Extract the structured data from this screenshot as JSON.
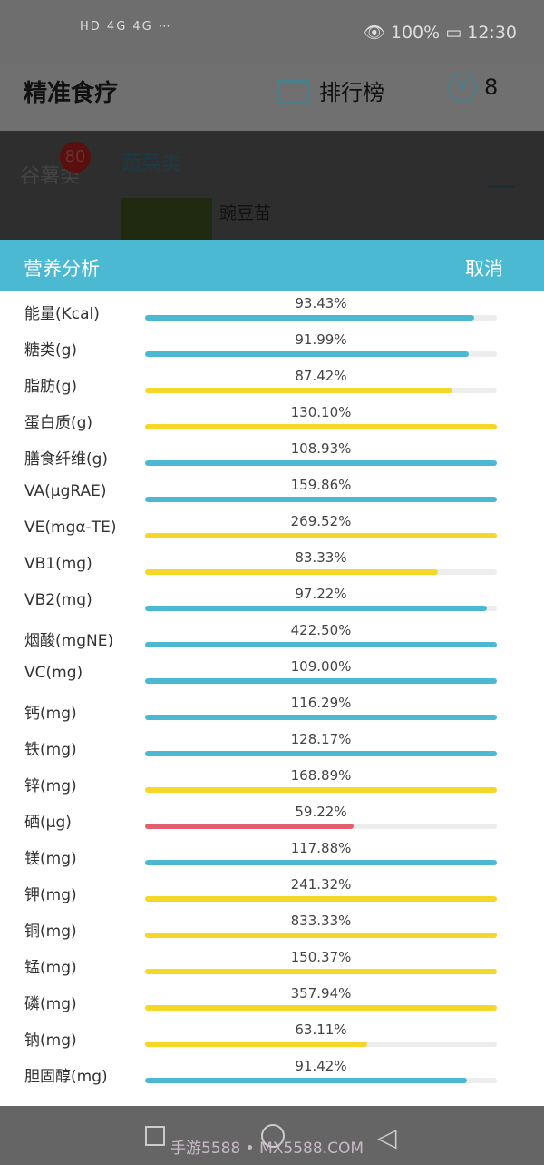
{
  "status_bar": {
    "icons": [
      "hd-icon",
      "signal-4g-icon",
      "signal-4g-icon",
      "wifi-icon",
      "app-icon",
      "usb-icon",
      "video-app-icon",
      "kuaishou-icon",
      "shield-icon",
      "more-icon"
    ],
    "left_text": "HD 4G 4G ⋯",
    "eye_icon": "eye-icon",
    "battery": "100%",
    "time": "12:30"
  },
  "app_bar": {
    "title": "精准食疗",
    "ranking_label": "排行榜",
    "coin_symbol": "¥",
    "coin_count": "8"
  },
  "background": {
    "category_1": "谷薯类",
    "badge": "80",
    "category_2": "蔬菜类",
    "food_name": "豌豆苗"
  },
  "panel": {
    "title": "营养分析",
    "cancel_label": "取消"
  },
  "colors": {
    "accent": "#4cb9d3",
    "blue": "#4cb9d3",
    "yellow": "#f5d727",
    "red": "#e0606e"
  },
  "nutrients": [
    {
      "label": "能量(Kcal)",
      "value": "93.43%",
      "percent": 93.43,
      "color": "blue"
    },
    {
      "label": "糖类(g)",
      "value": "91.99%",
      "percent": 91.99,
      "color": "blue"
    },
    {
      "label": "脂肪(g)",
      "value": "87.42%",
      "percent": 87.42,
      "color": "yellow"
    },
    {
      "label": "蛋白质(g)",
      "value": "130.10%",
      "percent": 130.1,
      "color": "yellow"
    },
    {
      "label": "膳食纤维(g)",
      "value": "108.93%",
      "percent": 108.93,
      "color": "blue"
    },
    {
      "label": "VA(μgRAE)",
      "value": "159.86%",
      "percent": 159.86,
      "color": "blue"
    },
    {
      "label": "VE(mgα-TE)",
      "value": "269.52%",
      "percent": 269.52,
      "color": "yellow"
    },
    {
      "label": "VB1(mg)",
      "value": "83.33%",
      "percent": 83.33,
      "color": "yellow"
    },
    {
      "label": "VB2(mg)",
      "value": "97.22%",
      "percent": 97.22,
      "color": "blue"
    },
    {
      "label": "烟酸(mgNE)",
      "value": "422.50%",
      "percent": 422.5,
      "color": "blue"
    },
    {
      "label": "VC(mg)",
      "value": "109.00%",
      "percent": 109.0,
      "color": "blue"
    },
    {
      "label": "钙(mg)",
      "value": "116.29%",
      "percent": 116.29,
      "color": "blue"
    },
    {
      "label": "铁(mg)",
      "value": "128.17%",
      "percent": 128.17,
      "color": "blue"
    },
    {
      "label": "锌(mg)",
      "value": "168.89%",
      "percent": 168.89,
      "color": "yellow"
    },
    {
      "label": "硒(μg)",
      "value": "59.22%",
      "percent": 59.22,
      "color": "red"
    },
    {
      "label": "镁(mg)",
      "value": "117.88%",
      "percent": 117.88,
      "color": "blue"
    },
    {
      "label": "钾(mg)",
      "value": "241.32%",
      "percent": 241.32,
      "color": "yellow"
    },
    {
      "label": "铜(mg)",
      "value": "833.33%",
      "percent": 833.33,
      "color": "yellow"
    },
    {
      "label": "锰(mg)",
      "value": "150.37%",
      "percent": 150.37,
      "color": "yellow"
    },
    {
      "label": "磷(mg)",
      "value": "357.94%",
      "percent": 357.94,
      "color": "yellow"
    },
    {
      "label": "钠(mg)",
      "value": "63.11%",
      "percent": 63.11,
      "color": "yellow"
    },
    {
      "label": "胆固醇(mg)",
      "value": "91.42%",
      "percent": 91.42,
      "color": "blue"
    }
  ],
  "watermark": "手游5588 • MX5588.COM"
}
